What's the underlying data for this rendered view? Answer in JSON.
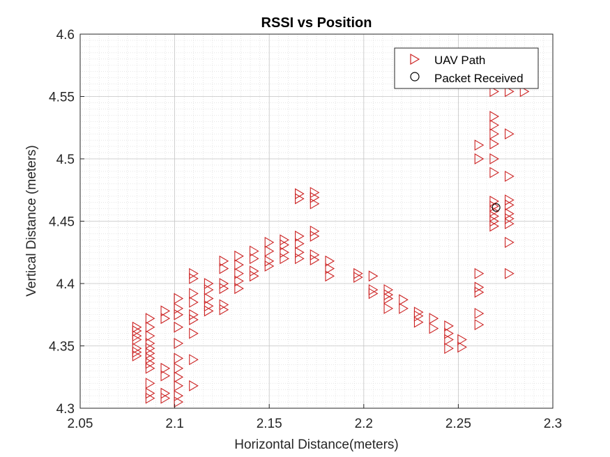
{
  "chart_data": {
    "type": "scatter",
    "title": "RSSI vs Position",
    "xlabel": "Horizontal Distance(meters)",
    "ylabel": "Vertical Distance (meters)",
    "xlim": [
      2.05,
      2.3
    ],
    "ylim": [
      4.3,
      4.6
    ],
    "xticks": [
      2.05,
      2.1,
      2.15,
      2.2,
      2.25,
      2.3
    ],
    "xtick_labels": [
      "2.05",
      "2.1",
      "2.15",
      "2.2",
      "2.25",
      "2.3"
    ],
    "yticks": [
      4.3,
      4.35,
      4.4,
      4.45,
      4.5,
      4.55,
      4.6
    ],
    "ytick_labels": [
      "4.3",
      "4.35",
      "4.4",
      "4.45",
      "4.5",
      "4.55",
      "4.6"
    ],
    "grid": "on (major and minor, dotted)",
    "legend_position": "top-right",
    "series": [
      {
        "name": "UAV Path",
        "marker": "triangle-right",
        "color": "#cc2222",
        "points": [
          [
            2.08,
            4.365
          ],
          [
            2.08,
            4.362
          ],
          [
            2.08,
            4.358
          ],
          [
            2.08,
            4.355
          ],
          [
            2.08,
            4.348
          ],
          [
            2.08,
            4.345
          ],
          [
            2.08,
            4.342
          ],
          [
            2.087,
            4.372
          ],
          [
            2.087,
            4.365
          ],
          [
            2.087,
            4.358
          ],
          [
            2.087,
            4.352
          ],
          [
            2.087,
            4.348
          ],
          [
            2.087,
            4.344
          ],
          [
            2.087,
            4.34
          ],
          [
            2.087,
            4.336
          ],
          [
            2.087,
            4.332
          ],
          [
            2.087,
            4.32
          ],
          [
            2.087,
            4.312
          ],
          [
            2.087,
            4.308
          ],
          [
            2.095,
            4.378
          ],
          [
            2.095,
            4.372
          ],
          [
            2.095,
            4.332
          ],
          [
            2.095,
            4.326
          ],
          [
            2.095,
            4.312
          ],
          [
            2.095,
            4.308
          ],
          [
            2.102,
            4.388
          ],
          [
            2.102,
            4.38
          ],
          [
            2.102,
            4.375
          ],
          [
            2.102,
            4.365
          ],
          [
            2.102,
            4.352
          ],
          [
            2.102,
            4.34
          ],
          [
            2.102,
            4.332
          ],
          [
            2.102,
            4.325
          ],
          [
            2.102,
            4.318
          ],
          [
            2.102,
            4.31
          ],
          [
            2.102,
            4.305
          ],
          [
            2.11,
            4.408
          ],
          [
            2.11,
            4.404
          ],
          [
            2.11,
            4.392
          ],
          [
            2.11,
            4.385
          ],
          [
            2.11,
            4.375
          ],
          [
            2.11,
            4.371
          ],
          [
            2.11,
            4.36
          ],
          [
            2.11,
            4.339
          ],
          [
            2.11,
            4.318
          ],
          [
            2.118,
            4.4
          ],
          [
            2.118,
            4.395
          ],
          [
            2.118,
            4.388
          ],
          [
            2.118,
            4.382
          ],
          [
            2.118,
            4.378
          ],
          [
            2.126,
            4.418
          ],
          [
            2.126,
            4.412
          ],
          [
            2.126,
            4.4
          ],
          [
            2.126,
            4.396
          ],
          [
            2.126,
            4.383
          ],
          [
            2.126,
            4.379
          ],
          [
            2.134,
            4.422
          ],
          [
            2.134,
            4.415
          ],
          [
            2.134,
            4.408
          ],
          [
            2.134,
            4.402
          ],
          [
            2.134,
            4.396
          ],
          [
            2.142,
            4.426
          ],
          [
            2.142,
            4.42
          ],
          [
            2.142,
            4.41
          ],
          [
            2.142,
            4.406
          ],
          [
            2.15,
            4.433
          ],
          [
            2.15,
            4.426
          ],
          [
            2.15,
            4.418
          ],
          [
            2.15,
            4.414
          ],
          [
            2.158,
            4.435
          ],
          [
            2.158,
            4.431
          ],
          [
            2.158,
            4.425
          ],
          [
            2.158,
            4.42
          ],
          [
            2.166,
            4.472
          ],
          [
            2.166,
            4.468
          ],
          [
            2.166,
            4.438
          ],
          [
            2.166,
            4.432
          ],
          [
            2.166,
            4.425
          ],
          [
            2.166,
            4.42
          ],
          [
            2.174,
            4.473
          ],
          [
            2.174,
            4.469
          ],
          [
            2.174,
            4.464
          ],
          [
            2.174,
            4.442
          ],
          [
            2.174,
            4.438
          ],
          [
            2.174,
            4.423
          ],
          [
            2.174,
            4.419
          ],
          [
            2.182,
            4.418
          ],
          [
            2.182,
            4.412
          ],
          [
            2.182,
            4.406
          ],
          [
            2.197,
            4.408
          ],
          [
            2.197,
            4.405
          ],
          [
            2.205,
            4.406
          ],
          [
            2.205,
            4.395
          ],
          [
            2.205,
            4.392
          ],
          [
            2.213,
            4.395
          ],
          [
            2.213,
            4.391
          ],
          [
            2.213,
            4.388
          ],
          [
            2.213,
            4.38
          ],
          [
            2.221,
            4.387
          ],
          [
            2.221,
            4.38
          ],
          [
            2.229,
            4.377
          ],
          [
            2.229,
            4.374
          ],
          [
            2.229,
            4.369
          ],
          [
            2.237,
            4.372
          ],
          [
            2.237,
            4.364
          ],
          [
            2.245,
            4.366
          ],
          [
            2.245,
            4.36
          ],
          [
            2.245,
            4.355
          ],
          [
            2.245,
            4.348
          ],
          [
            2.252,
            4.355
          ],
          [
            2.252,
            4.349
          ],
          [
            2.261,
            4.511
          ],
          [
            2.261,
            4.5
          ],
          [
            2.261,
            4.408
          ],
          [
            2.261,
            4.397
          ],
          [
            2.261,
            4.393
          ],
          [
            2.261,
            4.376
          ],
          [
            2.261,
            4.367
          ],
          [
            2.269,
            4.554
          ],
          [
            2.269,
            4.534
          ],
          [
            2.269,
            4.527
          ],
          [
            2.269,
            4.52
          ],
          [
            2.269,
            4.512
          ],
          [
            2.269,
            4.5
          ],
          [
            2.269,
            4.489
          ],
          [
            2.269,
            4.466
          ],
          [
            2.269,
            4.462
          ],
          [
            2.269,
            4.458
          ],
          [
            2.269,
            4.454
          ],
          [
            2.269,
            4.45
          ],
          [
            2.269,
            4.446
          ],
          [
            2.277,
            4.554
          ],
          [
            2.277,
            4.52
          ],
          [
            2.277,
            4.486
          ],
          [
            2.277,
            4.467
          ],
          [
            2.277,
            4.463
          ],
          [
            2.277,
            4.456
          ],
          [
            2.277,
            4.452
          ],
          [
            2.277,
            4.448
          ],
          [
            2.277,
            4.433
          ],
          [
            2.277,
            4.408
          ],
          [
            2.285,
            4.554
          ]
        ]
      },
      {
        "name": "Packet Received",
        "marker": "circle",
        "color": "#000000",
        "points": [
          [
            2.27,
            4.461
          ]
        ]
      }
    ]
  }
}
